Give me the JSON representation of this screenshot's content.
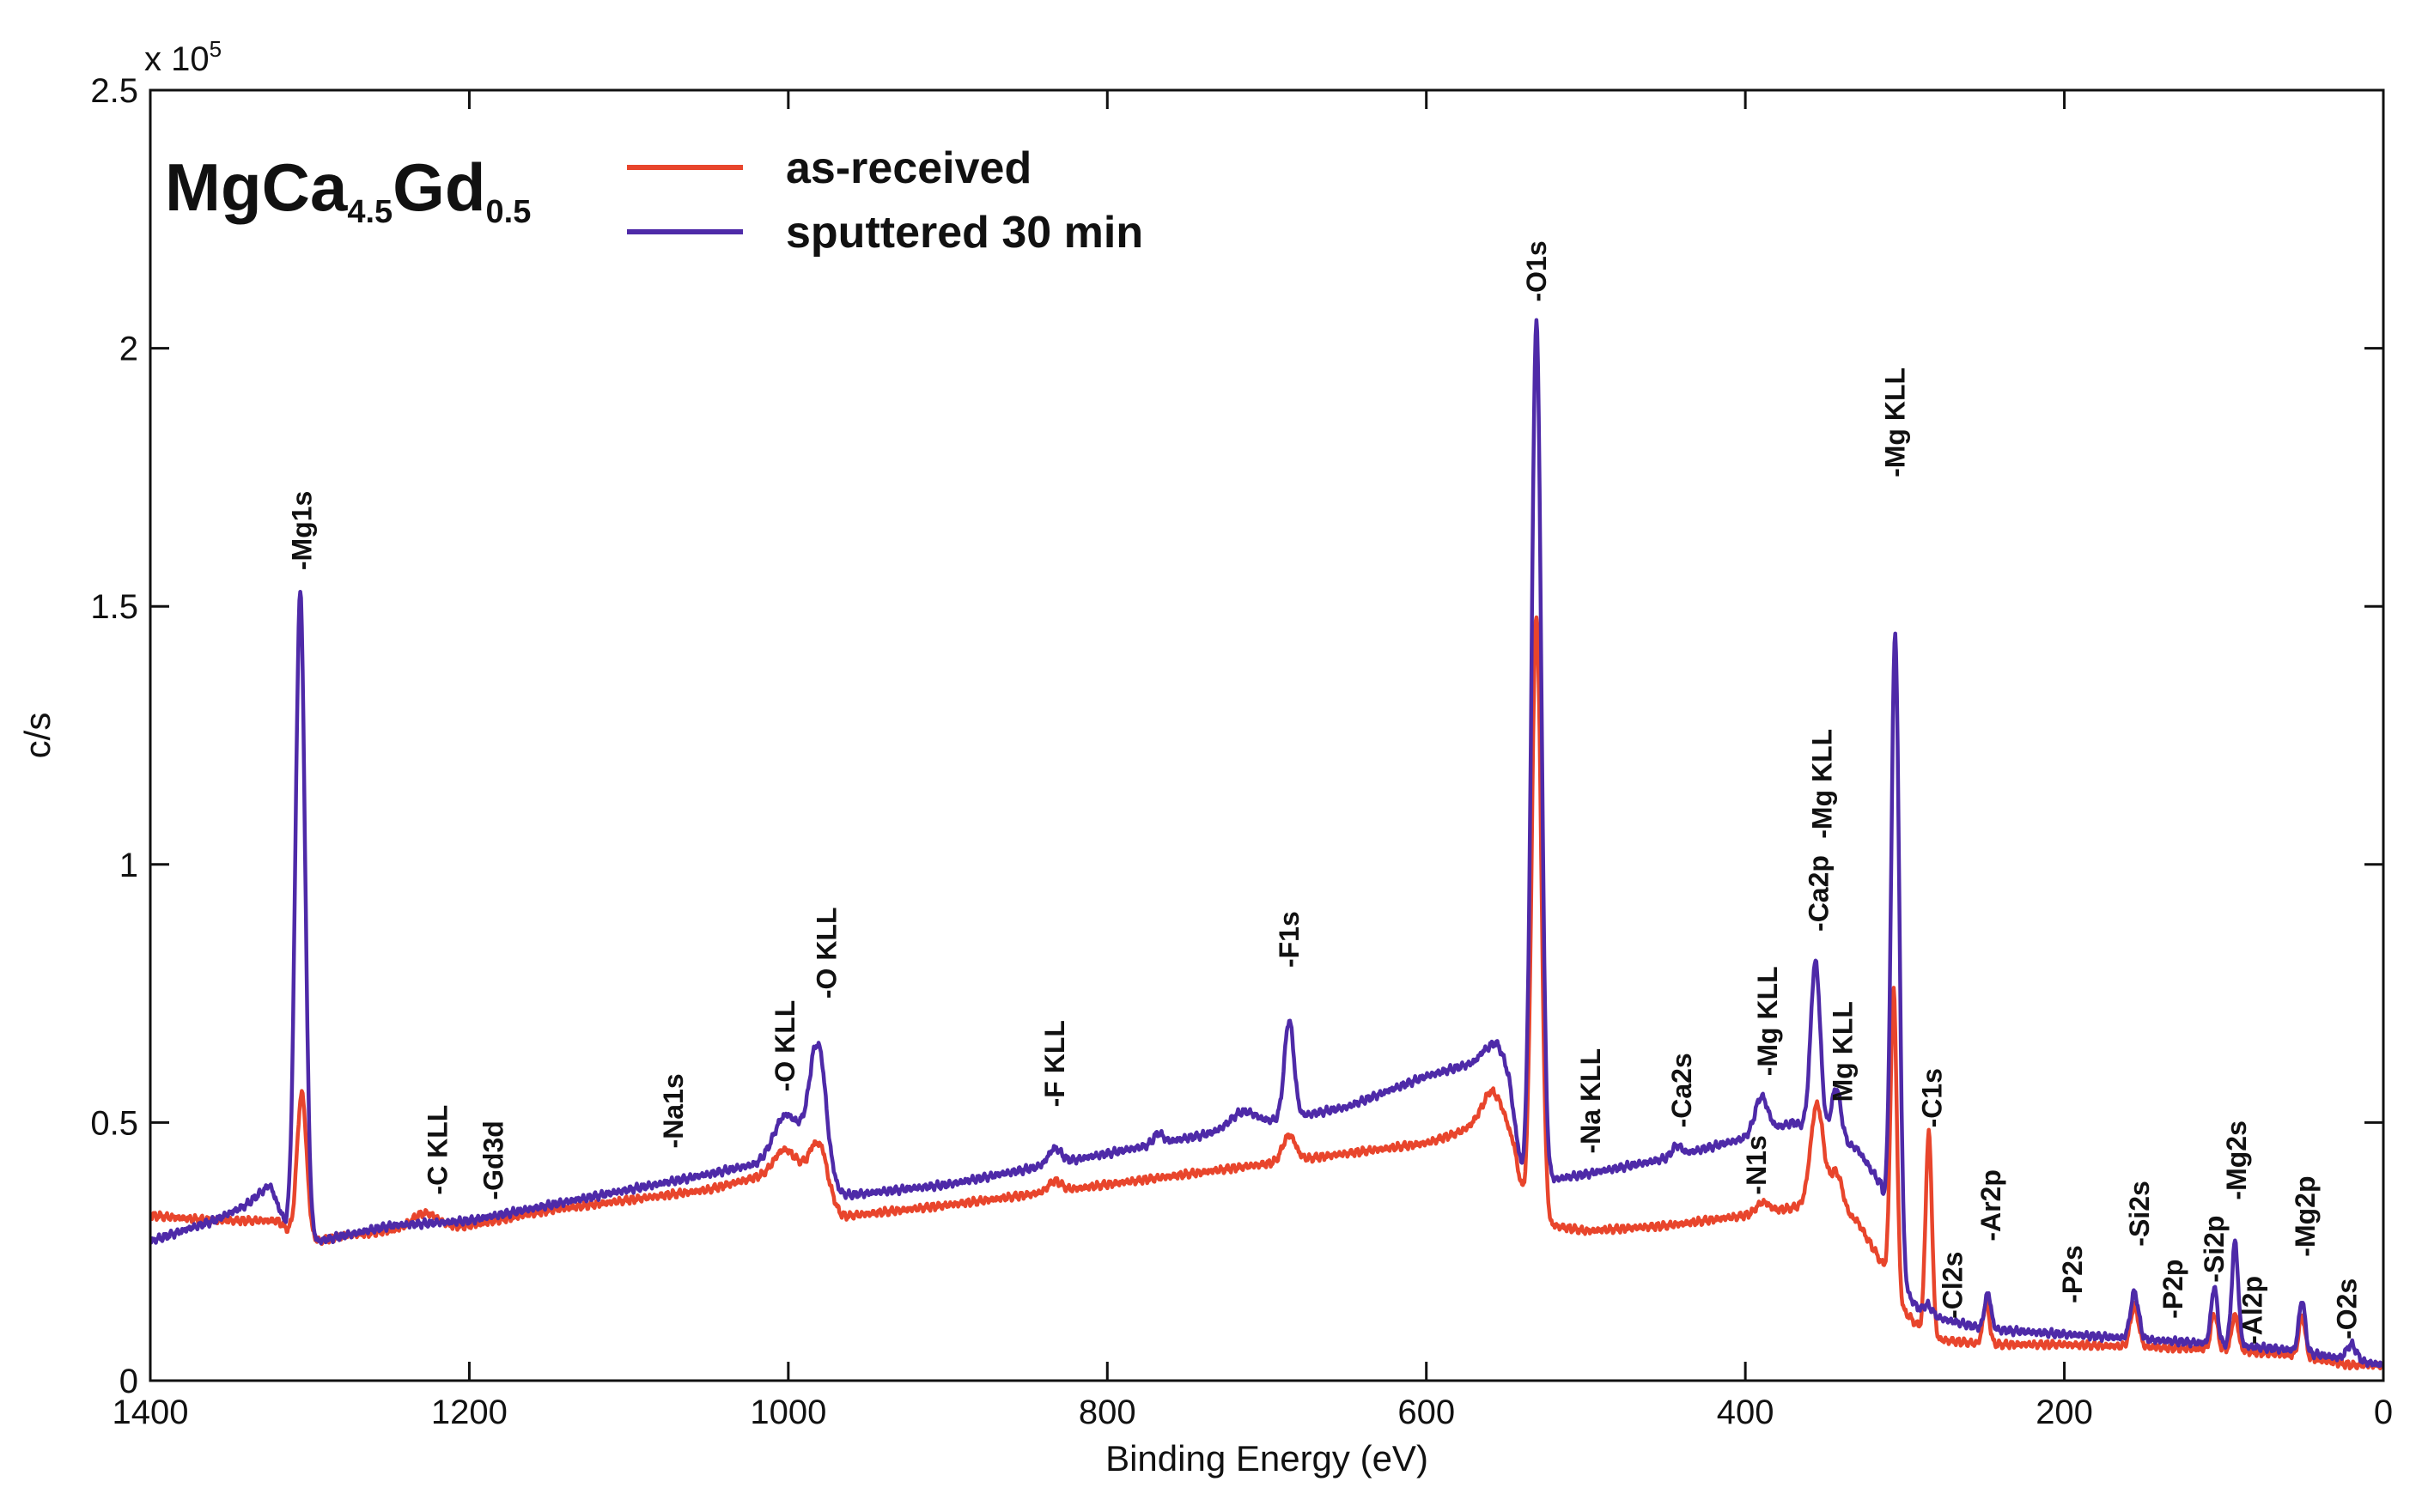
{
  "chart_data": {
    "type": "line",
    "xlabel": "Binding Energy (eV)",
    "ylabel": "c/s",
    "y_multiplier": "x 10",
    "y_multiplier_exp": "5",
    "xlim": [
      1400,
      0
    ],
    "ylim": [
      0,
      2.5
    ],
    "x_ticks": [
      1400,
      1200,
      1000,
      800,
      600,
      400,
      200,
      0
    ],
    "y_ticks": [
      0,
      0.5,
      1,
      1.5,
      2,
      2.5
    ],
    "y_tick_labels": [
      "0",
      "0.5",
      "1",
      "1.5",
      "2",
      "2.5"
    ],
    "legend_position": "top-left",
    "sample_label": {
      "main": "MgCa",
      "sub1": "4.5",
      "mid": "Gd",
      "sub2": "0.5"
    },
    "series": [
      {
        "name": "as-received",
        "color": "#e8452c",
        "baseline": [
          [
            1400,
            0.32
          ],
          [
            1360,
            0.31
          ],
          [
            1320,
            0.31
          ],
          [
            1310,
            0.28
          ],
          [
            1295,
            0.27
          ],
          [
            1280,
            0.28
          ],
          [
            1250,
            0.29
          ],
          [
            1200,
            0.3
          ],
          [
            1150,
            0.33
          ],
          [
            1100,
            0.35
          ],
          [
            1050,
            0.37
          ],
          [
            1000,
            0.41
          ],
          [
            985,
            0.42
          ],
          [
            975,
            0.31
          ],
          [
            960,
            0.32
          ],
          [
            900,
            0.34
          ],
          [
            800,
            0.38
          ],
          [
            700,
            0.42
          ],
          [
            600,
            0.46
          ],
          [
            560,
            0.5
          ],
          [
            545,
            0.43
          ],
          [
            535,
            0.28
          ],
          [
            520,
            0.3
          ],
          [
            500,
            0.29
          ],
          [
            450,
            0.3
          ],
          [
            400,
            0.32
          ],
          [
            360,
            0.34
          ],
          [
            330,
            0.31
          ],
          [
            313,
            0.22
          ],
          [
            305,
            0.15
          ],
          [
            290,
            0.1
          ],
          [
            280,
            0.08
          ],
          [
            250,
            0.07
          ],
          [
            200,
            0.07
          ],
          [
            150,
            0.065
          ],
          [
            100,
            0.06
          ],
          [
            60,
            0.05
          ],
          [
            40,
            0.04
          ],
          [
            20,
            0.03
          ],
          [
            0,
            0.03
          ]
        ],
        "peaks": [
          [
            1305,
            0.28,
            3
          ],
          [
            1228,
            0.03,
            8
          ],
          [
            1003,
            0.04,
            6
          ],
          [
            978,
            0.1,
            5
          ],
          [
            833,
            0.02,
            4
          ],
          [
            686,
            0.05,
            4
          ],
          [
            556,
            0.07,
            8
          ],
          [
            531,
            1.2,
            3
          ],
          [
            389,
            0.02,
            4
          ],
          [
            355,
            0.2,
            4
          ],
          [
            343,
            0.08,
            4
          ],
          [
            307,
            0.59,
            2
          ],
          [
            285,
            0.39,
            2
          ],
          [
            249,
            0.08,
            2
          ],
          [
            156,
            0.08,
            2.5
          ],
          [
            106,
            0.07,
            2
          ],
          [
            93,
            0.07,
            2
          ],
          [
            51,
            0.08,
            2
          ]
        ]
      },
      {
        "name": "sputtered 30 min",
        "color": "#4e2aa8",
        "baseline": [
          [
            1400,
            0.27
          ],
          [
            1360,
            0.31
          ],
          [
            1340,
            0.34
          ],
          [
            1325,
            0.38
          ],
          [
            1315,
            0.3
          ],
          [
            1295,
            0.27
          ],
          [
            1280,
            0.28
          ],
          [
            1250,
            0.3
          ],
          [
            1200,
            0.31
          ],
          [
            1150,
            0.34
          ],
          [
            1100,
            0.37
          ],
          [
            1050,
            0.4
          ],
          [
            1020,
            0.42
          ],
          [
            1000,
            0.47
          ],
          [
            985,
            0.5
          ],
          [
            975,
            0.36
          ],
          [
            960,
            0.36
          ],
          [
            900,
            0.38
          ],
          [
            800,
            0.44
          ],
          [
            700,
            0.5
          ],
          [
            650,
            0.53
          ],
          [
            600,
            0.59
          ],
          [
            565,
            0.62
          ],
          [
            548,
            0.55
          ],
          [
            540,
            0.4
          ],
          [
            520,
            0.39
          ],
          [
            500,
            0.4
          ],
          [
            450,
            0.43
          ],
          [
            400,
            0.47
          ],
          [
            370,
            0.5
          ],
          [
            330,
            0.45
          ],
          [
            315,
            0.38
          ],
          [
            305,
            0.2
          ],
          [
            290,
            0.13
          ],
          [
            250,
            0.1
          ],
          [
            200,
            0.09
          ],
          [
            150,
            0.08
          ],
          [
            100,
            0.07
          ],
          [
            60,
            0.06
          ],
          [
            40,
            0.05
          ],
          [
            20,
            0.04
          ],
          [
            0,
            0.03
          ]
        ],
        "peaks": [
          [
            1306,
            1.24,
            3
          ],
          [
            1003,
            0.05,
            6
          ],
          [
            980,
            0.21,
            5
          ],
          [
            833,
            0.03,
            4
          ],
          [
            768,
            0.02,
            3
          ],
          [
            715,
            0.03,
            8
          ],
          [
            686,
            0.19,
            3
          ],
          [
            555,
            0.07,
            6
          ],
          [
            531,
            1.66,
            3
          ],
          [
            443,
            0.02,
            3
          ],
          [
            390,
            0.07,
            4
          ],
          [
            356,
            0.33,
            3
          ],
          [
            343,
            0.1,
            3
          ],
          [
            306,
            1.23,
            2.5
          ],
          [
            286,
            0.02,
            3
          ],
          [
            248,
            0.07,
            2
          ],
          [
            156,
            0.09,
            2.5
          ],
          [
            106,
            0.11,
            2
          ],
          [
            93,
            0.2,
            2
          ],
          [
            51,
            0.1,
            2
          ],
          [
            20,
            0.03,
            3
          ]
        ]
      }
    ],
    "peak_labels": [
      {
        "x": 1305,
        "text": "-Mg1s",
        "y": 1.57
      },
      {
        "x": 1220,
        "text": "-C KLL",
        "y": 0.36
      },
      {
        "x": 1185,
        "text": "-Gd3d",
        "y": 0.35
      },
      {
        "x": 1072,
        "text": "-Na1s",
        "y": 0.45
      },
      {
        "x": 1002,
        "text": "-O KLL",
        "y": 0.56
      },
      {
        "x": 976,
        "text": "-O KLL",
        "y": 0.74
      },
      {
        "x": 833,
        "text": "-F KLL",
        "y": 0.53
      },
      {
        "x": 686,
        "text": "-F1s",
        "y": 0.8
      },
      {
        "x": 531,
        "text": "-O1s",
        "y": 2.09
      },
      {
        "x": 497,
        "text": "-Na KLL",
        "y": 0.44
      },
      {
        "x": 440,
        "text": "-Ca2s",
        "y": 0.49
      },
      {
        "x": 393,
        "text": "-N1s",
        "y": 0.36
      },
      {
        "x": 386,
        "text": "-Mg KLL",
        "y": 0.59
      },
      {
        "x": 354,
        "text": "-Ca2p",
        "y": 0.87
      },
      {
        "x": 352,
        "text": "-Mg KLL",
        "y": 1.05
      },
      {
        "x": 339,
        "text": "Mg KLL",
        "y": 0.54
      },
      {
        "x": 306,
        "text": "-Mg KLL",
        "y": 1.75
      },
      {
        "x": 283,
        "text": "-C1s",
        "y": 0.49
      },
      {
        "x": 270,
        "text": "-Cl2s",
        "y": 0.12
      },
      {
        "x": 246,
        "text": "-Ar2p",
        "y": 0.27
      },
      {
        "x": 195,
        "text": "-P2s",
        "y": 0.15
      },
      {
        "x": 153,
        "text": "-Si2s",
        "y": 0.26
      },
      {
        "x": 132,
        "text": "-P2p",
        "y": 0.12
      },
      {
        "x": 106,
        "text": "-Si2p",
        "y": 0.19
      },
      {
        "x": 92,
        "text": "-Mg2s",
        "y": 0.35
      },
      {
        "x": 82,
        "text": "-Al2p",
        "y": 0.07
      },
      {
        "x": 49,
        "text": "-Mg2p",
        "y": 0.24
      },
      {
        "x": 23,
        "text": "-O2s",
        "y": 0.08
      }
    ]
  }
}
